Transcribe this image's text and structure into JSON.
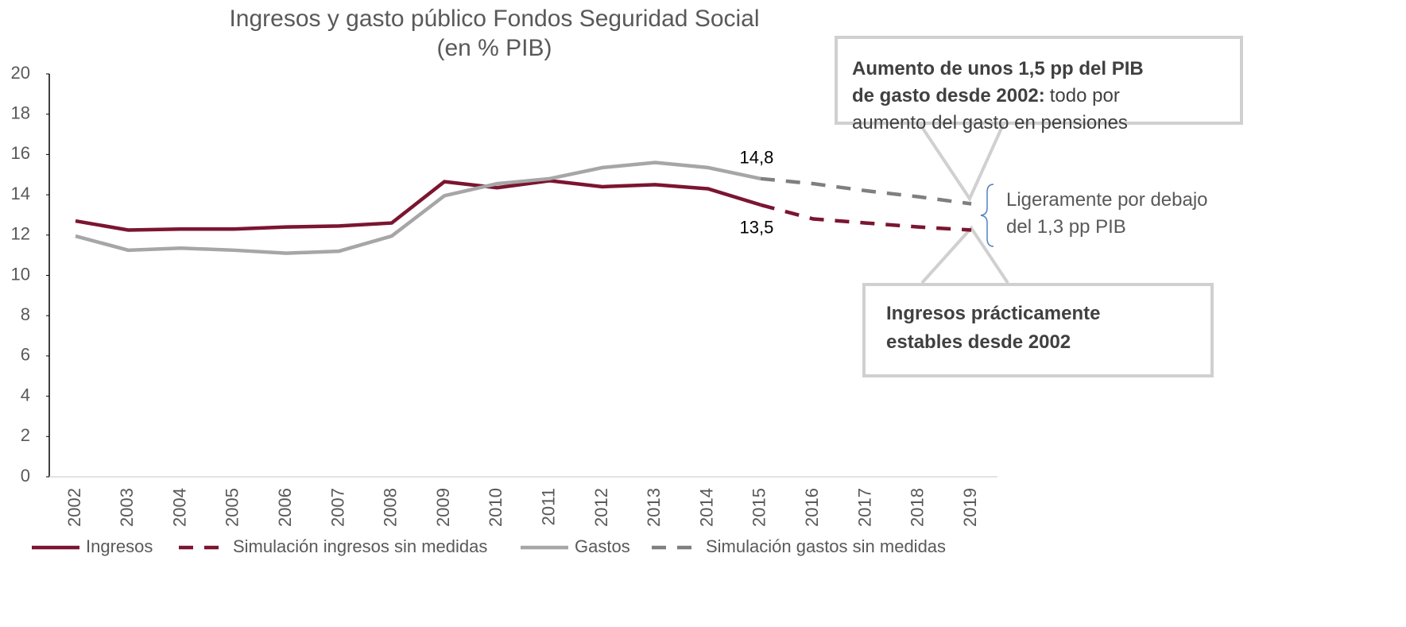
{
  "chart_data": {
    "type": "line",
    "title": [
      "Ingresos y gasto público Fondos Seguridad Social",
      "(en % PIB)"
    ],
    "categories": [
      "2002",
      "2003",
      "2004",
      "2005",
      "2006",
      "2007",
      "2008",
      "2009",
      "2010",
      "2011",
      "2012",
      "2013",
      "2014",
      "2015",
      "2016",
      "2017",
      "2018",
      "2019"
    ],
    "series": [
      {
        "name": "Ingresos",
        "color": "#7b1530",
        "style": "solid",
        "values": [
          12.7,
          12.25,
          12.3,
          12.3,
          12.4,
          12.45,
          12.6,
          14.65,
          14.35,
          14.7,
          14.4,
          14.5,
          14.3,
          13.5,
          null,
          null,
          null,
          null
        ],
        "value_labels": [
          null,
          null,
          null,
          null,
          null,
          null,
          null,
          null,
          null,
          null,
          null,
          null,
          null,
          "13,5",
          null,
          null,
          null,
          null
        ]
      },
      {
        "name": "Simulación ingresos sin medidas",
        "color": "#7b1530",
        "style": "dashed",
        "values": [
          null,
          null,
          null,
          null,
          null,
          null,
          null,
          null,
          null,
          null,
          null,
          null,
          null,
          13.5,
          12.8,
          12.6,
          12.4,
          12.25
        ]
      },
      {
        "name": "Gastos",
        "color": "#a6a6a6",
        "style": "solid",
        "values": [
          11.95,
          11.25,
          11.35,
          11.25,
          11.1,
          11.2,
          11.95,
          13.95,
          14.55,
          14.8,
          15.35,
          15.6,
          15.35,
          14.8,
          null,
          null,
          null,
          null
        ],
        "value_labels": [
          null,
          null,
          null,
          null,
          null,
          null,
          null,
          null,
          null,
          null,
          null,
          null,
          null,
          "14,8",
          null,
          null,
          null,
          null
        ]
      },
      {
        "name": "Simulación gastos sin medidas",
        "color": "#7f7f7f",
        "style": "dashed",
        "values": [
          null,
          null,
          null,
          null,
          null,
          null,
          null,
          null,
          null,
          null,
          null,
          null,
          null,
          14.8,
          14.55,
          14.2,
          13.9,
          13.55
        ]
      }
    ],
    "ylim": [
      0,
      20
    ],
    "yticks": [
      0,
      2,
      4,
      6,
      8,
      10,
      12,
      14,
      16,
      18,
      20
    ],
    "annotations": [
      {
        "lines": [
          [
            {
              "text": "Aumento de unos 1,5 pp del  PIB",
              "bold": true
            }
          ],
          [
            {
              "text": "de gasto desde 2002:",
              "bold": true
            },
            {
              "text": "todo por",
              "bold": false
            }
          ],
          [
            {
              "text": "aumento del gasto en pensiones",
              "bold": false
            }
          ]
        ]
      },
      {
        "lines": [
          [
            {
              "text": "Ligeramente por debajo",
              "bold": false
            }
          ],
          [
            {
              "text": "del 1,3 pp PIB",
              "bold": false
            }
          ]
        ]
      },
      {
        "lines": [
          [
            {
              "text": "Ingresos prácticamente",
              "bold": true
            }
          ],
          [
            {
              "text": "estables desde 2002",
              "bold": true
            }
          ]
        ]
      }
    ]
  }
}
